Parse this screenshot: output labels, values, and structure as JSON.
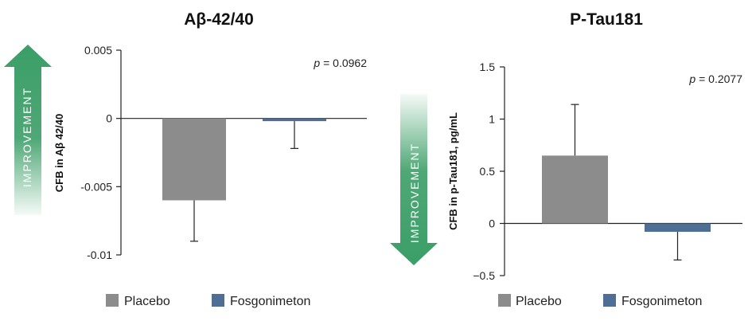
{
  "colors": {
    "placebo": "#8c8c8c",
    "fosgonimeton": "#4e6e96",
    "arrow": "#3b9e67"
  },
  "improvement_label": "IMPROVEMENT",
  "chart_data": [
    {
      "type": "bar",
      "title": "Aβ-42/40",
      "ylabel": "CFB in Aβ 42/40",
      "xlabel": "",
      "ylim": [
        -0.01,
        0.005
      ],
      "yticks": [
        0.005,
        0,
        -0.005,
        -0.01
      ],
      "ytick_labels": [
        "0.005",
        "0",
        "-0.005",
        "-0.01"
      ],
      "categories": [
        "Placebo",
        "Fosgonimeton"
      ],
      "values": [
        -0.006,
        -0.0002
      ],
      "error_bars": [
        -0.009,
        -0.0022
      ],
      "p_label": "p",
      "p_value_text": "= 0.0962",
      "improvement_direction": "up",
      "legend": [
        "Placebo",
        "Fosgonimeton"
      ]
    },
    {
      "type": "bar",
      "title": "P-Tau181",
      "ylabel": "CFB in p-Tau181, pg/mL",
      "xlabel": "",
      "ylim": [
        -0.5,
        1.5
      ],
      "yticks": [
        1.5,
        1,
        0.5,
        0,
        -0.5
      ],
      "ytick_labels": [
        "1.5",
        "1",
        "0.5",
        "0",
        "−0.5"
      ],
      "categories": [
        "Placebo",
        "Fosgonimeton"
      ],
      "values": [
        0.65,
        -0.08
      ],
      "error_bars": [
        1.14,
        -0.35
      ],
      "p_label": "p",
      "p_value_text": "= 0.2077",
      "improvement_direction": "down",
      "legend": [
        "Placebo",
        "Fosgonimeton"
      ]
    }
  ]
}
